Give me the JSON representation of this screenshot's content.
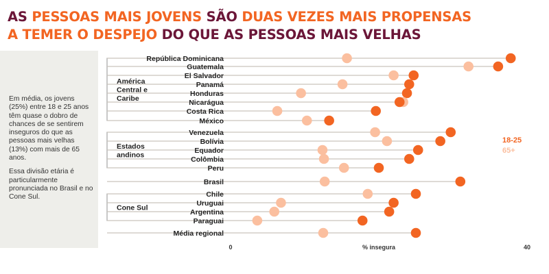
{
  "title": {
    "line1": [
      {
        "text": "AS ",
        "color": "#6b1638"
      },
      {
        "text": "PESSOAS MAIS JOVENS",
        "color": "#f26522"
      },
      {
        "text": " SÃO ",
        "color": "#6b1638"
      },
      {
        "text": "DUAS VEZES MAIS PROPENSAS",
        "color": "#f26522"
      }
    ],
    "line2": [
      {
        "text": "A TEMER O DESPEJO",
        "color": "#f26522"
      },
      {
        "text": " DO QUE AS PESSOAS MAIS VELHAS",
        "color": "#6b1638"
      }
    ]
  },
  "sidebar": {
    "paragraph1": "Em média, os jovens (25%) entre 18 e 25 anos têm quase o dobro de chances de se sentirem inseguros do que as pessoas mais velhas (13%) com mais de 65 anos.",
    "paragraph2": "Essa divisão etária é particularmente pronunciada no Brasil e no Cone Sul."
  },
  "colors": {
    "young": "#f26522",
    "old": "#fbbf9f",
    "line": "#c9c4bc",
    "bracket": "#9a9a9a"
  },
  "chart_data": {
    "type": "dot",
    "xlabel": "% insegura",
    "xlim": [
      0,
      40
    ],
    "x_ticks": [
      "0",
      "40"
    ],
    "series": [
      {
        "name": "18-25",
        "color": "#f26522"
      },
      {
        "name": "65+",
        "color": "#fbbf9f"
      }
    ],
    "groups": [
      {
        "name_lines": [
          "América",
          "Central e",
          "Caribe"
        ],
        "rows": [
          0,
          7
        ]
      },
      {
        "name_lines": [
          "Estados",
          "andinos"
        ],
        "rows": [
          8,
          12
        ]
      },
      {
        "name_lines": [
          "Cone Sul"
        ],
        "rows": [
          14,
          17
        ]
      }
    ],
    "rows": [
      {
        "label": "República Dominicana",
        "young": 37.8,
        "old": 15.7
      },
      {
        "label": "Guatemala",
        "young": 36.1,
        "old": 32.1
      },
      {
        "label": "El Salvador",
        "young": 24.7,
        "old": 22.0
      },
      {
        "label": "Panamá",
        "young": 24.1,
        "old": 15.1
      },
      {
        "label": "Honduras",
        "young": 23.8,
        "old": 9.5
      },
      {
        "label": "Nicarágua",
        "young": 22.8,
        "old": 23.3
      },
      {
        "label": "Costa Rica",
        "young": 19.6,
        "old": 6.3
      },
      {
        "label": "México",
        "young": 13.3,
        "old": 10.3
      },
      {
        "label": "Venezuela",
        "young": 29.7,
        "old": 19.5
      },
      {
        "label": "Bolívia",
        "young": 28.3,
        "old": 21.1
      },
      {
        "label": "Equador",
        "young": 25.3,
        "old": 12.4
      },
      {
        "label": "Colômbia",
        "young": 24.1,
        "old": 12.6
      },
      {
        "label": "Peru",
        "young": 20.0,
        "old": 15.3
      },
      {
        "label": "Brasil",
        "young": 31.0,
        "old": 12.7
      },
      {
        "label": "Chile",
        "young": 25.0,
        "old": 18.5
      },
      {
        "label": "Uruguai",
        "young": 22.0,
        "old": 6.8
      },
      {
        "label": "Argentina",
        "young": 21.4,
        "old": 5.9
      },
      {
        "label": "Paraguai",
        "young": 17.8,
        "old": 3.6
      },
      {
        "label": "Média regional",
        "young": 25.0,
        "old": 12.5
      }
    ]
  }
}
